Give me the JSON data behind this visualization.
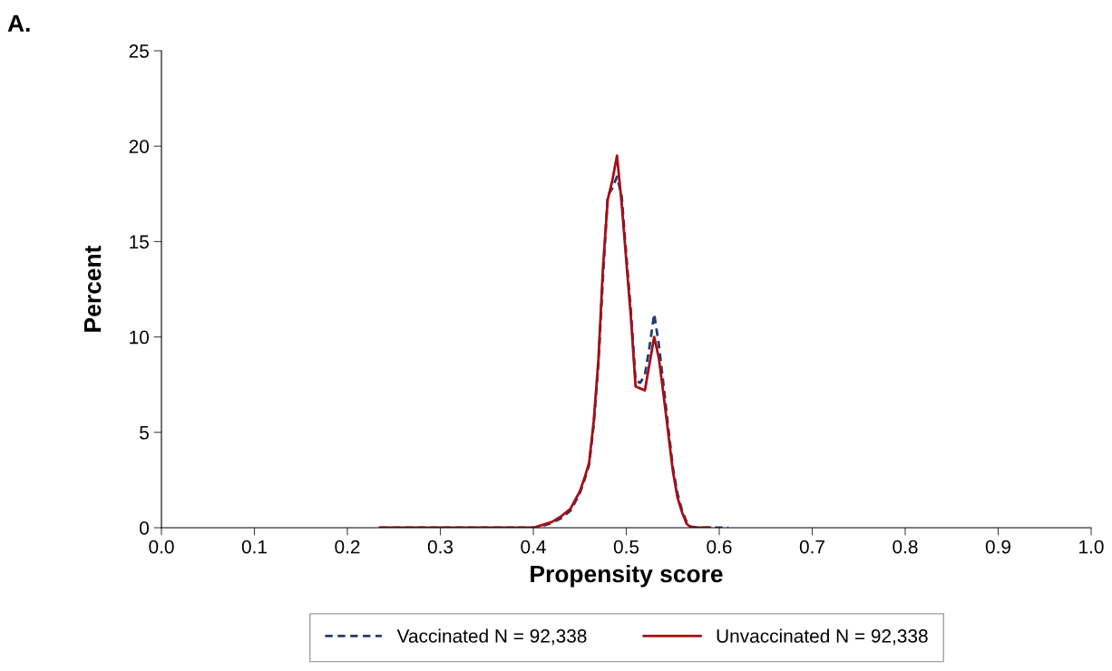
{
  "chart_data": {
    "type": "line",
    "title": "A.",
    "xlabel": "Propensity score",
    "ylabel": "Percent",
    "xlim": [
      0,
      1
    ],
    "xticks": [
      {
        "value": 0,
        "label": "0.0"
      },
      0.1,
      0.2,
      0.3,
      0.4,
      0.5,
      0.6,
      0.7,
      0.8,
      0.9,
      {
        "value": 1,
        "label": "1.0"
      }
    ],
    "ylim": [
      0,
      25
    ],
    "yticks": [
      0,
      5,
      10,
      15,
      20,
      25
    ],
    "grid": false,
    "legend": "bottom",
    "series": [
      {
        "name": "Vaccinated N = 92,338",
        "color": "#1f3d6e",
        "line_style": "dashed",
        "x": [
          0.235,
          0.3,
          0.4,
          0.41,
          0.42,
          0.43,
          0.44,
          0.45,
          0.455,
          0.46,
          0.465,
          0.47,
          0.475,
          0.48,
          0.485,
          0.49,
          0.495,
          0.5,
          0.505,
          0.51,
          0.515,
          0.52,
          0.525,
          0.53,
          0.535,
          0.54,
          0.545,
          0.55,
          0.555,
          0.56,
          0.565,
          0.57,
          0.58,
          0.59,
          0.6,
          0.61
        ],
        "values": [
          0,
          0,
          0,
          0.1,
          0.25,
          0.5,
          0.9,
          1.8,
          2.5,
          3.3,
          5.4,
          8.6,
          13.2,
          17.4,
          17.8,
          18.4,
          17.4,
          14.3,
          11.3,
          7.7,
          7.6,
          8.0,
          9.5,
          11.2,
          9.6,
          7.5,
          5.3,
          3.2,
          1.8,
          0.9,
          0.3,
          0.05,
          0,
          0,
          0,
          0
        ]
      },
      {
        "name": "Unvaccinated N = 92,338",
        "color": "#a50f15",
        "line_style": "solid",
        "x": [
          0.235,
          0.3,
          0.4,
          0.41,
          0.42,
          0.43,
          0.44,
          0.45,
          0.455,
          0.46,
          0.465,
          0.47,
          0.475,
          0.48,
          0.485,
          0.49,
          0.495,
          0.5,
          0.505,
          0.51,
          0.515,
          0.52,
          0.525,
          0.53,
          0.535,
          0.54,
          0.545,
          0.55,
          0.555,
          0.56,
          0.565,
          0.57,
          0.58,
          0.59
        ],
        "values": [
          0,
          0,
          0,
          0.15,
          0.3,
          0.6,
          1.0,
          1.9,
          2.6,
          3.4,
          5.6,
          8.8,
          13.7,
          17.2,
          18.2,
          19.5,
          17.0,
          14.0,
          11.0,
          7.4,
          7.3,
          7.2,
          8.6,
          10.0,
          8.9,
          7.0,
          5.0,
          3.0,
          1.6,
          0.8,
          0.2,
          0,
          0,
          0
        ]
      }
    ]
  }
}
